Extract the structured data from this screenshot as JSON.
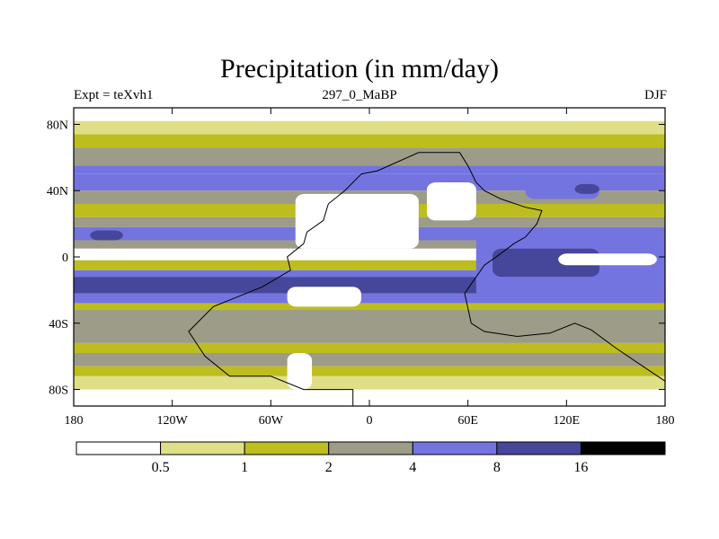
{
  "chart_data": {
    "type": "heatmap",
    "title": "Precipitation (in mm/day)",
    "subtitle_left": "Expt = teXvh1",
    "subtitle_center": "297_0_MaBP",
    "subtitle_right": "DJF",
    "xlabel": "",
    "ylabel": "",
    "xlim": [
      -180,
      180
    ],
    "ylim": [
      -90,
      90
    ],
    "x_ticks": [
      {
        "value": -180,
        "label": "180"
      },
      {
        "value": -120,
        "label": "120W"
      },
      {
        "value": -60,
        "label": "60W"
      },
      {
        "value": 0,
        "label": "0"
      },
      {
        "value": 60,
        "label": "60E"
      },
      {
        "value": 120,
        "label": "120E"
      },
      {
        "value": 180,
        "label": "180"
      }
    ],
    "y_ticks": [
      {
        "value": 80,
        "label": "80N"
      },
      {
        "value": 40,
        "label": "40N"
      },
      {
        "value": 0,
        "label": "0"
      },
      {
        "value": -40,
        "label": "40S"
      },
      {
        "value": -80,
        "label": "80S"
      }
    ],
    "levels": [
      0.5,
      1,
      2,
      4,
      8,
      16
    ],
    "level_labels": [
      "0.5",
      "1",
      "2",
      "4",
      "8",
      "16"
    ],
    "colors": [
      "#ffffff",
      "#dfdf88",
      "#bdbd1e",
      "#9c9c88",
      "#7474e0",
      "#46469a",
      "#000000"
    ],
    "zonal_bands": [
      {
        "lat_min": 82,
        "lat_max": 90,
        "value": 0.3
      },
      {
        "lat_min": 74,
        "lat_max": 82,
        "value": 0.8
      },
      {
        "lat_min": 66,
        "lat_max": 74,
        "value": 1.5
      },
      {
        "lat_min": 55,
        "lat_max": 66,
        "value": 3.0
      },
      {
        "lat_min": 50,
        "lat_max": 55,
        "value": 4.5
      },
      {
        "lat_min": 40,
        "lat_max": 50,
        "value": 5.5
      },
      {
        "lat_min": 32,
        "lat_max": 40,
        "value": 3.0
      },
      {
        "lat_min": 24,
        "lat_max": 32,
        "value": 1.5
      },
      {
        "lat_min": 18,
        "lat_max": 24,
        "value": 3.0
      },
      {
        "lat_min": 10,
        "lat_max": 18,
        "value": 6.0
      },
      {
        "lat_min": 5,
        "lat_max": 10,
        "value": 3.0
      },
      {
        "lat_min": -2,
        "lat_max": 5,
        "value": 0.3
      },
      {
        "lat_min": -8,
        "lat_max": -2,
        "value": 1.5
      },
      {
        "lat_min": -12,
        "lat_max": -8,
        "value": 5.0
      },
      {
        "lat_min": -22,
        "lat_max": -12,
        "value": 10.0
      },
      {
        "lat_min": -28,
        "lat_max": -22,
        "value": 6.0
      },
      {
        "lat_min": -32,
        "lat_max": -28,
        "value": 1.5
      },
      {
        "lat_min": -52,
        "lat_max": -32,
        "value": 3.0
      },
      {
        "lat_min": -58,
        "lat_max": -52,
        "value": 1.5
      },
      {
        "lat_min": -66,
        "lat_max": -58,
        "value": 3.0
      },
      {
        "lat_min": -72,
        "lat_max": -66,
        "value": 1.5
      },
      {
        "lat_min": -80,
        "lat_max": -72,
        "value": 0.8
      },
      {
        "lat_min": -90,
        "lat_max": -80,
        "value": 0.3
      }
    ],
    "regions": [
      {
        "lon_min": -45,
        "lon_max": 30,
        "lat_min": 5,
        "lat_max": 38,
        "value": 0.3
      },
      {
        "lon_min": 35,
        "lon_max": 65,
        "lat_min": 22,
        "lat_max": 45,
        "value": 0.3
      },
      {
        "lon_min": 65,
        "lon_max": 180,
        "lat_min": -25,
        "lat_max": 15,
        "value": 6.0
      },
      {
        "lon_min": 75,
        "lon_max": 140,
        "lat_min": -12,
        "lat_max": 5,
        "value": 10.0
      },
      {
        "lon_min": 115,
        "lon_max": 175,
        "lat_min": -5,
        "lat_max": 2,
        "value": 0.3
      },
      {
        "lon_min": 95,
        "lon_max": 140,
        "lat_min": 35,
        "lat_max": 48,
        "value": 6.0
      },
      {
        "lon_min": 125,
        "lon_max": 140,
        "lat_min": 38,
        "lat_max": 44,
        "value": 10.0
      },
      {
        "lon_min": -50,
        "lon_max": -5,
        "lat_min": -30,
        "lat_max": -18,
        "value": 0.3
      },
      {
        "lon_min": -50,
        "lon_max": -35,
        "lat_min": -80,
        "lat_max": -58,
        "value": 0.3
      },
      {
        "lon_min": -170,
        "lon_max": -150,
        "lat_min": 10,
        "lat_max": 16,
        "value": 10.0
      }
    ]
  }
}
